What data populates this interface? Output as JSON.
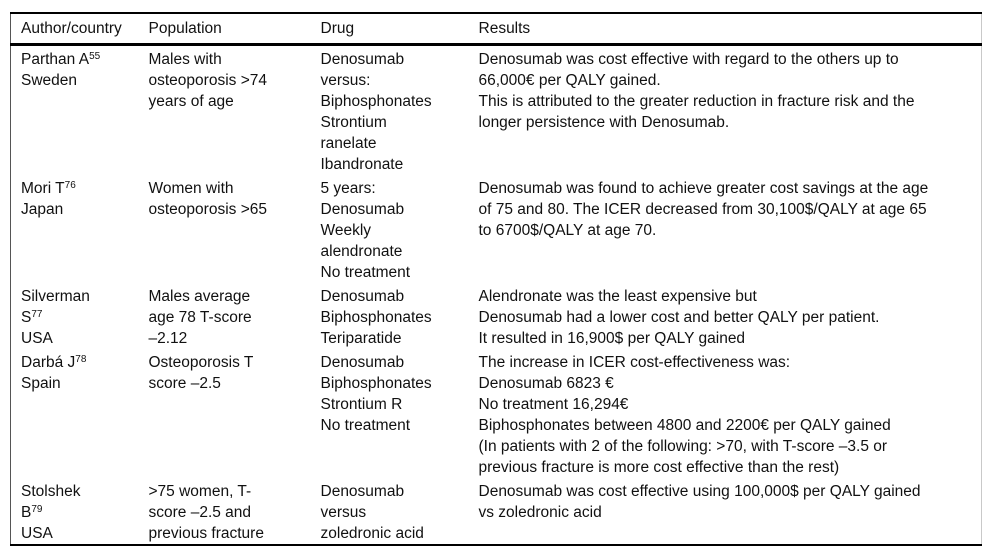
{
  "table": {
    "columns": [
      "Author/country",
      "Population",
      "Drug",
      "Results"
    ],
    "rows": [
      {
        "author": [
          {
            "text": "Parthan A",
            "sup": "55"
          },
          "Sweden"
        ],
        "population": [
          "Males with",
          "osteoporosis >74",
          "years of age"
        ],
        "drug": [
          "Denosumab",
          "versus:",
          "Biphosphonates",
          "Strontium",
          "ranelate",
          "Ibandronate"
        ],
        "results": [
          "Denosumab was cost effective with regard to the others up to",
          "66,000€ per QALY gained.",
          "This is attributed to the greater reduction in fracture risk and the",
          "longer persistence with Denosumab."
        ]
      },
      {
        "author": [
          {
            "text": "Mori T",
            "sup": "76"
          },
          "Japan"
        ],
        "population": [
          "Women with",
          "osteoporosis >65"
        ],
        "drug": [
          "5 years:",
          "Denosumab",
          "Weekly",
          "alendronate",
          "No treatment"
        ],
        "results": [
          "Denosumab was found to achieve greater cost savings at the age",
          "of 75 and 80. The ICER decreased from 30,100$/QALY at age 65",
          "to 6700$/QALY at age 70."
        ]
      },
      {
        "author": [
          "Silverman",
          {
            "text": "S",
            "sup": "77"
          },
          "USA"
        ],
        "population": [
          "Males average",
          "age 78 T-score",
          "–2.12"
        ],
        "drug": [
          "Denosumab",
          "Biphosphonates",
          "Teriparatide"
        ],
        "results": [
          "Alendronate was the least expensive but",
          "Denosumab had a lower cost and better QALY per patient.",
          "It resulted in 16,900$ per QALY gained"
        ]
      },
      {
        "author": [
          {
            "text": "Darbá J",
            "sup": "78"
          },
          "Spain"
        ],
        "population": [
          "Osteoporosis T",
          "score –2.5"
        ],
        "drug": [
          "Denosumab",
          "Biphosphonates",
          "Strontium R",
          "No treatment"
        ],
        "results": [
          "The increase in ICER cost-effectiveness was:",
          "Denosumab 6823 €",
          "No treatment 16,294€",
          "Biphosphonates between 4800 and 2200€ per QALY gained",
          "(In patients with 2 of the following: >70, with T-score –3.5 or",
          "previous fracture is more cost effective than the rest)"
        ]
      },
      {
        "author": [
          "Stolshek",
          {
            "text": "B",
            "sup": "79"
          },
          "USA"
        ],
        "population": [
          ">75 women, T-",
          "score –2.5 and",
          "previous fracture"
        ],
        "drug": [
          "Denosumab",
          "versus",
          "zoledronic acid"
        ],
        "results": [
          "Denosumab was cost effective using 100,000$ per QALY gained",
          "vs zoledronic acid"
        ]
      }
    ]
  }
}
